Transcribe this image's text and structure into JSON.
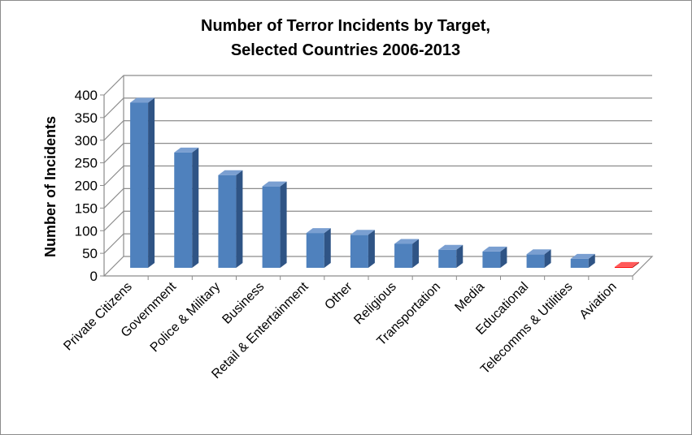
{
  "chart_data": {
    "type": "bar",
    "title": "Number of Terror Incidents by Target,",
    "subtitle": "Selected Countries 2006-2013",
    "xlabel": "",
    "ylabel": "Number of Incidents",
    "ylim": [
      0,
      400
    ],
    "yticks": [
      "0",
      "50",
      "100",
      "150",
      "200",
      "250",
      "300",
      "350",
      "400"
    ],
    "grid": true,
    "legend": "none",
    "categories": [
      "Private Citizens",
      "Government",
      "Police & Military",
      "Business",
      "Retail & Entertainment",
      "Other",
      "Religious",
      "Transportation",
      "Media",
      "Educational",
      "Telecomms & Utilities",
      "Aviation"
    ],
    "values": [
      365,
      255,
      205,
      180,
      77,
      73,
      53,
      40,
      36,
      30,
      20,
      2
    ],
    "colors": {
      "default_bar": "#4f81bd",
      "default_bar_side": "#2f5485",
      "default_bar_top": "#7a9fd1",
      "highlight_bar": "#ff0000",
      "highlight_bar_side": "#a00000",
      "highlight_bar_top": "#ff5a5a",
      "highlight_index": 11,
      "gridline": "#8c8c8c",
      "frame": "#8c8c8c"
    }
  }
}
